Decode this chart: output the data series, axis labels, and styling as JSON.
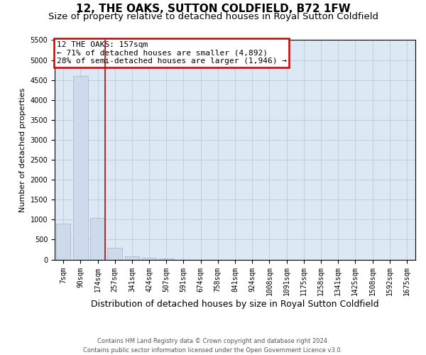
{
  "title": "12, THE OAKS, SUTTON COLDFIELD, B72 1FW",
  "subtitle": "Size of property relative to detached houses in Royal Sutton Coldfield",
  "xlabel": "Distribution of detached houses by size in Royal Sutton Coldfield",
  "ylabel": "Number of detached properties",
  "footer_line1": "Contains HM Land Registry data © Crown copyright and database right 2024.",
  "footer_line2": "Contains public sector information licensed under the Open Government Licence v3.0.",
  "categories": [
    "7sqm",
    "90sqm",
    "174sqm",
    "257sqm",
    "341sqm",
    "424sqm",
    "507sqm",
    "591sqm",
    "674sqm",
    "758sqm",
    "841sqm",
    "924sqm",
    "1008sqm",
    "1091sqm",
    "1175sqm",
    "1258sqm",
    "1341sqm",
    "1425sqm",
    "1508sqm",
    "1592sqm",
    "1675sqm"
  ],
  "values": [
    900,
    4600,
    1050,
    295,
    78,
    48,
    25,
    0,
    0,
    0,
    0,
    0,
    0,
    0,
    0,
    0,
    0,
    0,
    0,
    0,
    0
  ],
  "bar_color": "#ccdaec",
  "bar_edge_color": "#9fb4cc",
  "grid_color": "#b8ccd8",
  "background_color": "#dce8f4",
  "annotation_line1": "12 THE OAKS: 157sqm",
  "annotation_line2": "← 71% of detached houses are smaller (4,892)",
  "annotation_line3": "28% of semi-detached houses are larger (1,946) →",
  "annotation_box_edgecolor": "#cc0000",
  "vline_color": "#cc0000",
  "vline_x_index": 2,
  "ylim_max": 5500,
  "yticks": [
    0,
    500,
    1000,
    1500,
    2000,
    2500,
    3000,
    3500,
    4000,
    4500,
    5000,
    5500
  ],
  "title_fontsize": 11,
  "subtitle_fontsize": 9.5,
  "ylabel_fontsize": 8,
  "xlabel_fontsize": 9,
  "tick_fontsize": 7,
  "annotation_fontsize": 8,
  "footer_fontsize": 6
}
